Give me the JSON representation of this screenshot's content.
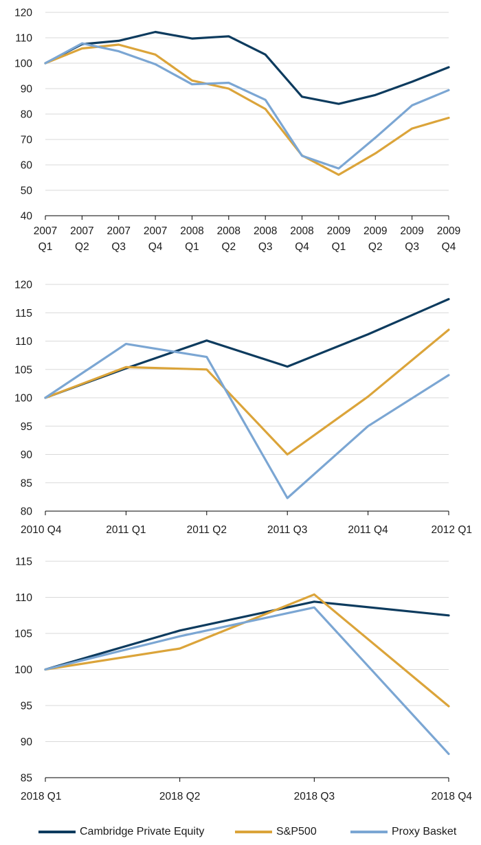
{
  "colors": {
    "cambridge": "#0d3b5e",
    "sp500": "#dba43a",
    "proxy": "#7ba6d3",
    "axis": "#000000",
    "grid": "#d9d9d9"
  },
  "legend": [
    {
      "label": "Cambridge Private Equity",
      "color": "#0d3b5e"
    },
    {
      "label": "S&P500",
      "color": "#dba43a"
    },
    {
      "label": "Proxy Basket",
      "color": "#7ba6d3"
    }
  ],
  "chart_data": [
    {
      "type": "line",
      "categories": [
        [
          "2007",
          "Q1"
        ],
        [
          "2007",
          "Q2"
        ],
        [
          "2007",
          "Q3"
        ],
        [
          "2007",
          "Q4"
        ],
        [
          "2008",
          "Q1"
        ],
        [
          "2008",
          "Q2"
        ],
        [
          "2008",
          "Q3"
        ],
        [
          "2008",
          "Q4"
        ],
        [
          "2009",
          "Q1"
        ],
        [
          "2009",
          "Q2"
        ],
        [
          "2009",
          "Q3"
        ],
        [
          "2009",
          "Q4"
        ]
      ],
      "ylim": [
        40,
        120
      ],
      "yticks": [
        40,
        50,
        60,
        70,
        80,
        90,
        100,
        110,
        120
      ],
      "grid": true,
      "series": [
        {
          "name": "Cambridge Private Equity",
          "values": [
            100,
            107.5,
            108.8,
            112.3,
            109.7,
            110.6,
            103.4,
            86.8,
            84,
            87.5,
            92.7,
            98.4
          ]
        },
        {
          "name": "S&P500",
          "values": [
            100,
            105.8,
            107.3,
            103.4,
            93.2,
            90,
            82,
            63.7,
            56.1,
            64.5,
            74.3,
            78.5
          ]
        },
        {
          "name": "Proxy Basket",
          "values": [
            100,
            107.8,
            104.7,
            99.6,
            91.7,
            92.3,
            85.6,
            63.6,
            58.6,
            70.7,
            83.4,
            89.4
          ]
        }
      ]
    },
    {
      "type": "line",
      "categories": [
        [
          "2010 Q4"
        ],
        [
          "2011 Q1"
        ],
        [
          "2011 Q2"
        ],
        [
          "2011 Q3"
        ],
        [
          "2011 Q4"
        ],
        [
          "2012 Q1"
        ]
      ],
      "ylim": [
        80,
        120
      ],
      "yticks": [
        80,
        85,
        90,
        95,
        100,
        105,
        110,
        115,
        120
      ],
      "grid": true,
      "series": [
        {
          "name": "Cambridge Private Equity",
          "values": [
            100,
            105.2,
            110.1,
            105.5,
            111.2,
            117.4
          ]
        },
        {
          "name": "S&P500",
          "values": [
            100,
            105.4,
            105,
            90,
            100.2,
            112
          ]
        },
        {
          "name": "Proxy Basket",
          "values": [
            100,
            109.5,
            107.2,
            82.3,
            95,
            104
          ]
        }
      ]
    },
    {
      "type": "line",
      "categories": [
        [
          "2018 Q1"
        ],
        [
          "2018 Q2"
        ],
        [
          "2018 Q3"
        ],
        [
          "2018 Q4"
        ]
      ],
      "ylim": [
        85,
        115
      ],
      "yticks": [
        85,
        90,
        95,
        100,
        105,
        110,
        115
      ],
      "grid": true,
      "series": [
        {
          "name": "Cambridge Private Equity",
          "values": [
            100,
            105.4,
            109.4,
            107.5
          ]
        },
        {
          "name": "S&P500",
          "values": [
            100,
            102.9,
            110.4,
            94.9
          ]
        },
        {
          "name": "Proxy Basket",
          "values": [
            100,
            104.6,
            108.6,
            88.3
          ]
        }
      ]
    }
  ]
}
